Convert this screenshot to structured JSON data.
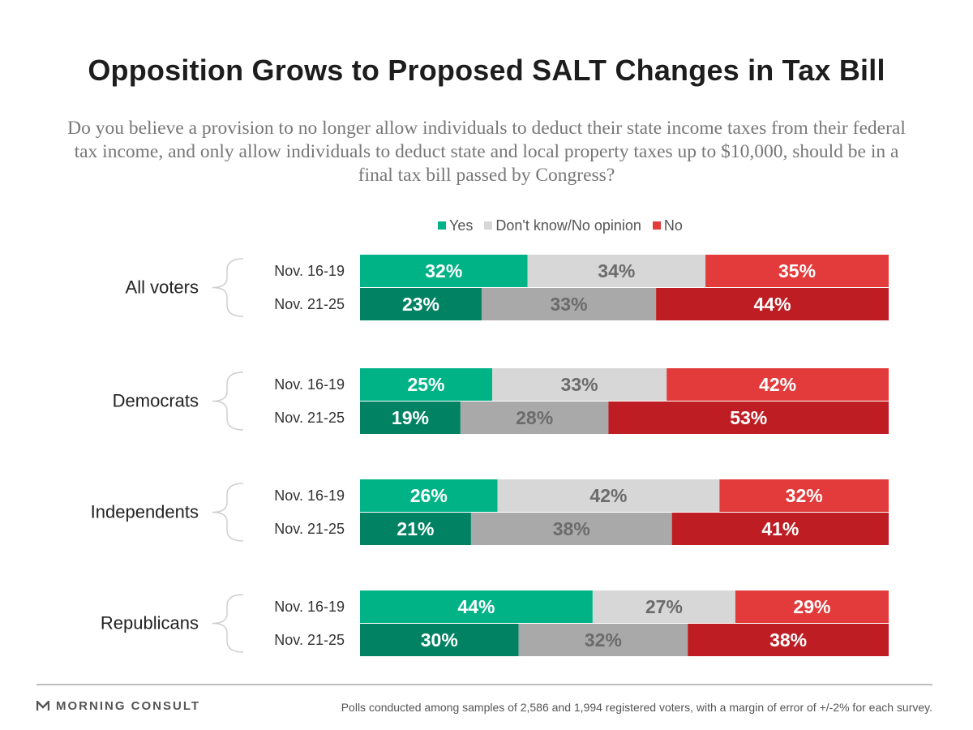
{
  "title": "Opposition Grows to Proposed SALT Changes in Tax Bill",
  "subtitle": "Do you believe a provision to no longer allow individuals to deduct their state income taxes from their federal tax income, and only allow individuals to deduct state and local property taxes up to $10,000, should be in a final tax bill passed by Congress?",
  "footer": {
    "brand": "MORNING CONSULT",
    "note": "Polls conducted among samples of 2,586 and 1,994 registered voters, with a margin of error of +/-2% for each survey."
  },
  "chart_data": {
    "type": "bar",
    "orientation": "horizontal",
    "stacked": true,
    "normalized_to": 100,
    "legend_position": "top",
    "legend": [
      "Yes",
      "Don't know/No opinion",
      "No"
    ],
    "colors": {
      "yes_first": "#00b386",
      "yes_second": "#008263",
      "dk_first": "#d7d7d7",
      "dk_second": "#a9a9a9",
      "no_first": "#e33b3b",
      "no_second": "#be1e23",
      "label_light": "#ffffff",
      "label_dark": "#6b6b6b"
    },
    "groups": [
      {
        "name": "All voters",
        "rows": [
          {
            "period": "Nov. 16-19",
            "values": [
              32,
              34,
              35
            ],
            "labels": [
              "32%",
              "34%",
              "35%"
            ]
          },
          {
            "period": "Nov. 21-25",
            "values": [
              23,
              33,
              44
            ],
            "labels": [
              "23%",
              "33%",
              "44%"
            ]
          }
        ]
      },
      {
        "name": "Democrats",
        "rows": [
          {
            "period": "Nov. 16-19",
            "values": [
              25,
              33,
              42
            ],
            "labels": [
              "25%",
              "33%",
              "42%"
            ]
          },
          {
            "period": "Nov. 21-25",
            "values": [
              19,
              28,
              53
            ],
            "labels": [
              "19%",
              "28%",
              "53%"
            ]
          }
        ]
      },
      {
        "name": "Independents",
        "rows": [
          {
            "period": "Nov. 16-19",
            "values": [
              26,
              42,
              32
            ],
            "labels": [
              "26%",
              "42%",
              "32%"
            ]
          },
          {
            "period": "Nov. 21-25",
            "values": [
              21,
              38,
              41
            ],
            "labels": [
              "21%",
              "38%",
              "41%"
            ]
          }
        ]
      },
      {
        "name": "Republicans",
        "rows": [
          {
            "period": "Nov. 16-19",
            "values": [
              44,
              27,
              29
            ],
            "labels": [
              "44%",
              "27%",
              "29%"
            ]
          },
          {
            "period": "Nov. 21-25",
            "values": [
              30,
              32,
              38
            ],
            "labels": [
              "30%",
              "32%",
              "38%"
            ]
          }
        ]
      }
    ]
  }
}
